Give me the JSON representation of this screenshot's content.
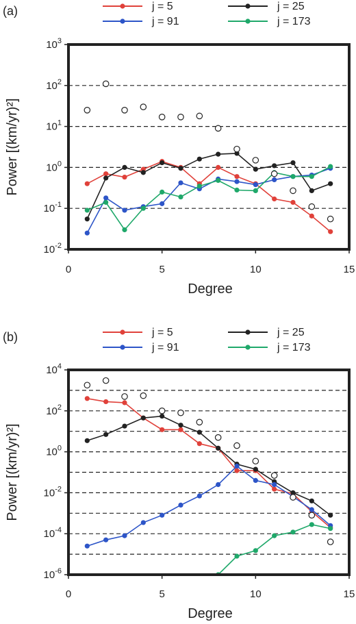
{
  "chart_data": [
    {
      "type": "line",
      "panel_label": "(a)",
      "xlabel": "Degree",
      "ylabel": "Power [(km/yr)²]",
      "xlim": [
        0,
        15
      ],
      "ylim_log10": [
        -2,
        3
      ],
      "yscale": "log",
      "x_ticks": [
        "0",
        "5",
        "10",
        "15"
      ],
      "x_tick_values": [
        0,
        5,
        10,
        15
      ],
      "y_ticks": [
        {
          "base": "10",
          "exp": "-2",
          "value": 0.01
        },
        {
          "base": "10",
          "exp": "-1",
          "value": 0.1
        },
        {
          "base": "10",
          "exp": "0",
          "value": 1
        },
        {
          "base": "10",
          "exp": "1",
          "value": 10
        },
        {
          "base": "10",
          "exp": "2",
          "value": 100
        },
        {
          "base": "10",
          "exp": "3",
          "value": 1000
        }
      ],
      "dashed_gridlines_at": [
        0.1,
        1,
        10,
        100
      ],
      "legend": [
        {
          "label": "j = 5",
          "color": "#e0413a"
        },
        {
          "label": "j = 25",
          "color": "#222222"
        },
        {
          "label": "j = 91",
          "color": "#2d55c8"
        },
        {
          "label": "j = 173",
          "color": "#1fa86a"
        }
      ],
      "x": [
        1,
        2,
        3,
        4,
        5,
        6,
        7,
        8,
        9,
        10,
        11,
        12,
        13,
        14
      ],
      "series": [
        {
          "name": "j = 5",
          "color": "#e0413a",
          "values": [
            0.4,
            0.7,
            0.58,
            0.9,
            1.4,
            1.0,
            0.4,
            1.0,
            0.6,
            0.4,
            0.17,
            0.14,
            0.065,
            0.027
          ]
        },
        {
          "name": "j = 25",
          "color": "#222222",
          "values": [
            0.055,
            0.55,
            1.0,
            0.75,
            1.3,
            0.95,
            1.6,
            2.1,
            2.2,
            0.9,
            1.1,
            1.3,
            0.27,
            0.4
          ]
        },
        {
          "name": "j = 91",
          "color": "#2d55c8",
          "values": [
            0.025,
            0.18,
            0.09,
            0.11,
            0.13,
            0.42,
            0.3,
            0.52,
            0.45,
            0.38,
            0.5,
            0.6,
            0.65,
            0.95
          ]
        },
        {
          "name": "j = 173",
          "color": "#1fa86a",
          "values": [
            0.09,
            0.14,
            0.03,
            0.1,
            0.25,
            0.19,
            0.35,
            0.48,
            0.28,
            0.27,
            0.75,
            0.6,
            0.6,
            1.05
          ]
        },
        {
          "name": "",
          "color": "#222222",
          "marker": "open-circle",
          "values": [
            25,
            110,
            25,
            30,
            17,
            17,
            18,
            9,
            2.8,
            1.5,
            0.7,
            0.27,
            0.11,
            0.055
          ]
        }
      ]
    },
    {
      "type": "line",
      "panel_label": "(b)",
      "xlabel": "Degree",
      "ylabel": "Power [(km/yr)²]",
      "xlim": [
        0,
        15
      ],
      "ylim_log10": [
        -6,
        4
      ],
      "yscale": "log",
      "x_ticks": [
        "0",
        "5",
        "10",
        "15"
      ],
      "x_tick_values": [
        0,
        5,
        10,
        15
      ],
      "y_ticks": [
        {
          "base": "10",
          "exp": "-6",
          "value": 1e-06
        },
        {
          "base": "10",
          "exp": "-4",
          "value": 0.0001
        },
        {
          "base": "10",
          "exp": "-2",
          "value": 0.01
        },
        {
          "base": "10",
          "exp": "0",
          "value": 1
        },
        {
          "base": "10",
          "exp": "2",
          "value": 100
        },
        {
          "base": "10",
          "exp": "4",
          "value": 10000
        }
      ],
      "dashed_gridlines_at": [
        1e-05,
        0.0001,
        0.001,
        0.01,
        0.1,
        1,
        10,
        100,
        1000
      ],
      "legend": [
        {
          "label": "j = 5",
          "color": "#e0413a"
        },
        {
          "label": "j = 25",
          "color": "#222222"
        },
        {
          "label": "j = 91",
          "color": "#2d55c8"
        },
        {
          "label": "j = 173",
          "color": "#1fa86a"
        }
      ],
      "x": [
        1,
        2,
        3,
        4,
        5,
        6,
        7,
        8,
        9,
        10,
        11,
        12,
        13,
        14
      ],
      "series": [
        {
          "name": "j = 5",
          "color": "#e0413a",
          "values": [
            400,
            280,
            250,
            45,
            12,
            12,
            2.5,
            1.5,
            0.12,
            0.12,
            0.015,
            0.009,
            0.0012,
            0.0002
          ]
        },
        {
          "name": "j = 25",
          "color": "#222222",
          "values": [
            3.5,
            7,
            18,
            45,
            55,
            20,
            9,
            1.5,
            0.25,
            0.14,
            0.035,
            0.01,
            0.004,
            0.0008
          ]
        },
        {
          "name": "j = 91",
          "color": "#2d55c8",
          "values": [
            2.5e-05,
            5e-05,
            8e-05,
            0.00035,
            0.0008,
            0.0025,
            0.007,
            0.025,
            0.2,
            0.04,
            0.025,
            0.0065,
            0.0015,
            0.00025
          ]
        },
        {
          "name": "j = 173",
          "color": "#1fa86a",
          "values": [
            null,
            null,
            null,
            null,
            null,
            null,
            null,
            1e-06,
            8e-06,
            1.5e-05,
            8e-05,
            0.00012,
            0.00028,
            0.00018
          ]
        },
        {
          "name": "",
          "color": "#222222",
          "marker": "open-circle",
          "values": [
            1800,
            3000,
            500,
            550,
            100,
            80,
            28,
            5,
            2,
            0.35,
            0.07,
            0.006,
            0.0008,
            4e-05
          ]
        }
      ]
    }
  ]
}
